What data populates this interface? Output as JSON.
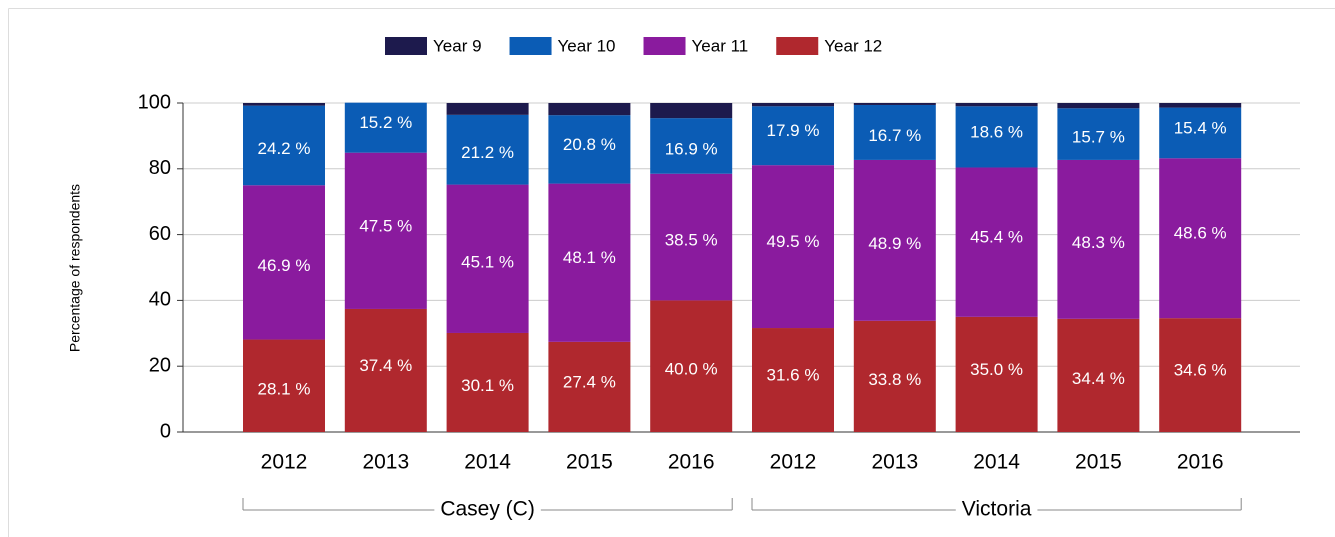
{
  "chart_data": {
    "type": "stacked_bar",
    "y_label": "Percentage of respondents",
    "categories": [
      "2012",
      "2013",
      "2014",
      "2015",
      "2016",
      "2012",
      "2013",
      "2014",
      "2015",
      "2016"
    ],
    "groups": [
      {
        "label": "Casey (C)",
        "start": 0,
        "end": 4
      },
      {
        "label": "Victoria",
        "start": 5,
        "end": 9
      }
    ],
    "series": [
      {
        "name": "Year 12",
        "color": "#b0282e",
        "values": [
          28.1,
          37.4,
          30.1,
          27.4,
          40.0,
          31.6,
          33.8,
          35.0,
          34.4,
          34.6
        ],
        "value_labels": [
          "28.1 %",
          "37.4 %",
          "30.1 %",
          "27.4 %",
          "40.0 %",
          "31.6 %",
          "33.8 %",
          "35.0 %",
          "34.4 %",
          "34.6 %"
        ]
      },
      {
        "name": "Year 11",
        "color": "#8a1b9e",
        "values": [
          46.9,
          47.5,
          45.1,
          48.1,
          38.5,
          49.5,
          48.9,
          45.4,
          48.3,
          48.6
        ],
        "value_labels": [
          "46.9 %",
          "47.5 %",
          "45.1 %",
          "48.1 %",
          "38.5 %",
          "49.5 %",
          "48.9 %",
          "45.4 %",
          "48.3 %",
          "48.6 %"
        ]
      },
      {
        "name": "Year 10",
        "color": "#0b5cb5",
        "values": [
          24.2,
          15.2,
          21.2,
          20.8,
          16.9,
          17.9,
          16.7,
          18.6,
          15.7,
          15.4
        ],
        "value_labels": [
          "24.2 %",
          "15.2 %",
          "21.2 %",
          "20.8 %",
          "16.9 %",
          "17.9 %",
          "16.7 %",
          "18.6 %",
          "15.7 %",
          "15.4 %"
        ]
      },
      {
        "name": "Year 9",
        "color": "#1d1a4d",
        "values": [
          0.8,
          0,
          3.6,
          3.7,
          4.6,
          1.0,
          0.6,
          1.0,
          1.6,
          1.4
        ]
      }
    ],
    "legend_order": [
      3,
      2,
      1,
      0
    ],
    "ylim": [
      0,
      100
    ],
    "yticks": [
      0,
      20,
      40,
      60,
      80,
      100
    ],
    "grid": true
  }
}
